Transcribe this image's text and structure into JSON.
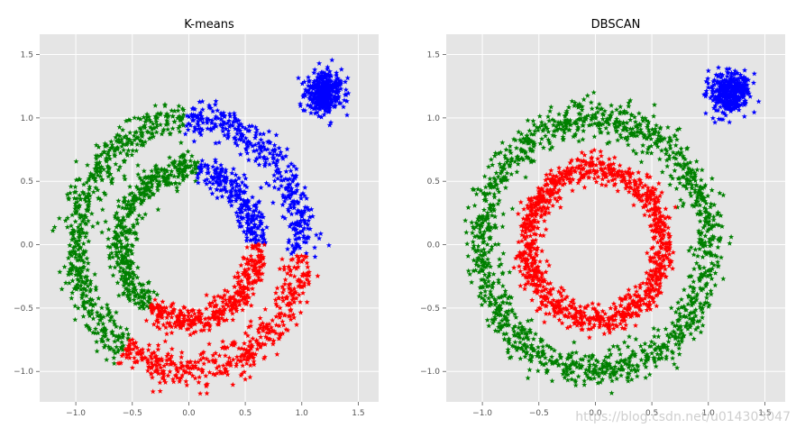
{
  "chart_data": [
    {
      "type": "scatter",
      "title": "K-means",
      "xlabel": "",
      "ylabel": "",
      "xlim": [
        -1.32,
        1.68
      ],
      "ylim": [
        -1.24,
        1.66
      ],
      "xticks": [
        "-1.0",
        "-0.5",
        "0.0",
        "0.5",
        "1.0",
        "1.5"
      ],
      "yticks": [
        "-1.0",
        "-0.5",
        "0.0",
        "0.5",
        "1.0",
        "1.5"
      ],
      "grid": true,
      "marker": "star",
      "series": [
        {
          "color": "#008000",
          "shapes": [
            {
              "kind": "ring",
              "r": 1.0,
              "spread": 0.07,
              "theta_deg": [
                92,
                235
              ],
              "n": 560
            },
            {
              "kind": "ring",
              "r": 0.6,
              "spread": 0.055,
              "theta_deg": [
                82,
                235
              ],
              "n": 460
            }
          ]
        },
        {
          "color": "#0000ff",
          "shapes": [
            {
              "kind": "ring",
              "r": 1.0,
              "spread": 0.07,
              "theta_deg": [
                -5,
                92
              ],
              "n": 380
            },
            {
              "kind": "ring",
              "r": 0.6,
              "spread": 0.055,
              "theta_deg": [
                0,
                82
              ],
              "n": 250
            },
            {
              "kind": "blob",
              "cx": 1.2,
              "cy": 1.2,
              "sd": 0.08,
              "n": 400
            }
          ]
        },
        {
          "color": "#ff0000",
          "shapes": [
            {
              "kind": "ring",
              "r": 1.0,
              "spread": 0.07,
              "theta_deg": [
                235,
                355
              ],
              "n": 460
            },
            {
              "kind": "ring",
              "r": 0.6,
              "spread": 0.055,
              "theta_deg": [
                235,
                360
              ],
              "n": 380
            }
          ]
        }
      ]
    },
    {
      "type": "scatter",
      "title": "DBSCAN",
      "xlabel": "",
      "ylabel": "",
      "xlim": [
        -1.32,
        1.68
      ],
      "ylim": [
        -1.24,
        1.66
      ],
      "xticks": [
        "-1.0",
        "-0.5",
        "0.0",
        "0.5",
        "1.0",
        "1.5"
      ],
      "yticks": [
        "-1.0",
        "-0.5",
        "0.0",
        "0.5",
        "1.0",
        "1.5"
      ],
      "grid": true,
      "marker": "star",
      "series": [
        {
          "color": "#008000",
          "shapes": [
            {
              "kind": "ring",
              "r": 1.0,
              "spread": 0.07,
              "theta_deg": [
                0,
                360
              ],
              "n": 1400
            }
          ]
        },
        {
          "color": "#ff0000",
          "shapes": [
            {
              "kind": "ring",
              "r": 0.6,
              "spread": 0.055,
              "theta_deg": [
                0,
                360
              ],
              "n": 1100
            }
          ]
        },
        {
          "color": "#0000ff",
          "shapes": [
            {
              "kind": "blob",
              "cx": 1.2,
              "cy": 1.2,
              "sd": 0.08,
              "n": 400
            }
          ]
        }
      ]
    }
  ],
  "watermark": "https://blog.csdn.net/u014303047"
}
